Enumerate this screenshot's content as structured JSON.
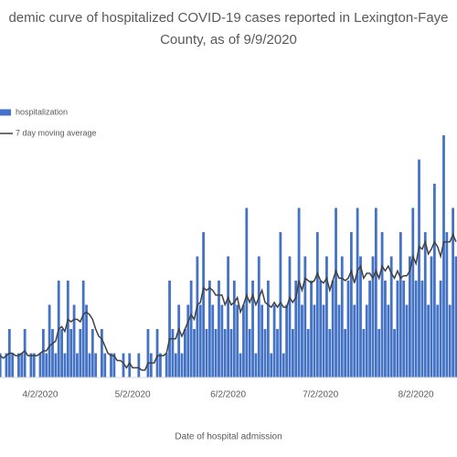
{
  "chart_data": {
    "type": "bar",
    "title": [
      "demic curve of hospitalized COVID-19 cases reported in Lexington-Faye",
      "County, as of 9/9/2020"
    ],
    "x_label": "Date of hospital admission",
    "categories": [
      null,
      null,
      null,
      null,
      null,
      null,
      null,
      null,
      null,
      null,
      null,
      null,
      null,
      "4/2/2020",
      null,
      null,
      null,
      null,
      null,
      null,
      null,
      null,
      null,
      null,
      null,
      null,
      null,
      null,
      null,
      null,
      null,
      null,
      null,
      null,
      null,
      null,
      null,
      null,
      null,
      null,
      null,
      null,
      null,
      "5/2/2020",
      null,
      null,
      null,
      null,
      null,
      null,
      null,
      null,
      null,
      null,
      null,
      null,
      null,
      null,
      null,
      null,
      null,
      null,
      null,
      null,
      null,
      null,
      null,
      null,
      null,
      null,
      null,
      null,
      null,
      null,
      "6/2/2020",
      null,
      null,
      null,
      null,
      null,
      null,
      null,
      null,
      null,
      null,
      null,
      null,
      null,
      null,
      null,
      null,
      null,
      null,
      null,
      null,
      null,
      null,
      null,
      null,
      null,
      null,
      null,
      null,
      null,
      "7/2/2020",
      null,
      null,
      null,
      null,
      null,
      null,
      null,
      null,
      null,
      null,
      null,
      null,
      null,
      null,
      null,
      null,
      null,
      null,
      null,
      null,
      null,
      null,
      null,
      null,
      null,
      null,
      null,
      null,
      null,
      null,
      "8/2/2020",
      null,
      null,
      null,
      null,
      null,
      null,
      null,
      null,
      null,
      null,
      null,
      null,
      null
    ],
    "series": [
      {
        "name": "hospitalization",
        "type": "bar",
        "color": "#4472c4",
        "values": [
          1,
          0,
          1,
          2,
          1,
          0,
          1,
          1,
          2,
          0,
          1,
          1,
          0,
          1,
          2,
          1,
          3,
          2,
          1,
          4,
          2,
          1,
          4,
          2,
          3,
          1,
          2,
          4,
          3,
          1,
          2,
          1,
          0,
          2,
          1,
          0,
          1,
          1,
          0,
          0,
          1,
          0,
          1,
          0,
          0,
          1,
          0,
          0,
          2,
          1,
          0,
          2,
          1,
          0,
          1,
          4,
          2,
          1,
          3,
          1,
          2,
          3,
          4,
          2,
          5,
          3,
          6,
          2,
          4,
          3,
          2,
          4,
          3,
          2,
          5,
          2,
          4,
          3,
          1,
          3,
          7,
          2,
          4,
          1,
          5,
          3,
          2,
          4,
          1,
          3,
          2,
          6,
          1,
          3,
          5,
          2,
          4,
          7,
          3,
          5,
          2,
          4,
          3,
          6,
          4,
          3,
          5,
          2,
          4,
          7,
          3,
          5,
          2,
          4,
          6,
          3,
          7,
          5,
          2,
          3,
          4,
          5,
          7,
          2,
          6,
          4,
          3,
          5,
          2,
          4,
          6,
          4,
          3,
          5,
          7,
          4,
          9,
          4,
          6,
          3,
          5,
          8,
          3,
          4,
          10,
          6,
          3,
          7,
          5
        ]
      },
      {
        "name": "7 day moving average",
        "type": "line",
        "color": "#404040",
        "values": [
          0.9,
          0.8,
          0.9,
          1.0,
          1.0,
          0.9,
          0.9,
          1.0,
          1.1,
          0.9,
          0.9,
          0.9,
          0.9,
          1.0,
          1.1,
          1.1,
          1.3,
          1.4,
          1.5,
          2.0,
          2.1,
          1.9,
          2.4,
          2.3,
          2.4,
          2.4,
          2.3,
          2.6,
          2.7,
          2.6,
          2.4,
          2.0,
          1.7,
          1.6,
          1.3,
          1.0,
          0.9,
          0.9,
          0.7,
          0.7,
          0.6,
          0.4,
          0.6,
          0.4,
          0.4,
          0.4,
          0.3,
          0.3,
          0.6,
          0.6,
          0.6,
          0.9,
          0.9,
          0.9,
          1.0,
          1.6,
          1.6,
          1.6,
          2.0,
          1.7,
          2.0,
          2.3,
          2.6,
          2.4,
          3.0,
          3.1,
          3.7,
          3.6,
          3.7,
          3.6,
          3.4,
          3.4,
          3.4,
          3.0,
          3.3,
          3.0,
          3.1,
          3.3,
          2.7,
          3.0,
          3.4,
          3.1,
          3.4,
          3.0,
          3.3,
          3.6,
          3.1,
          3.0,
          2.9,
          3.1,
          2.9,
          3.1,
          2.9,
          2.9,
          3.3,
          3.1,
          3.3,
          4.0,
          3.6,
          4.1,
          4.0,
          3.9,
          4.0,
          4.3,
          4.0,
          3.9,
          4.1,
          3.6,
          4.0,
          4.4,
          4.1,
          4.1,
          4.0,
          4.1,
          4.4,
          3.9,
          4.4,
          4.6,
          4.1,
          4.3,
          4.3,
          4.1,
          4.4,
          4.1,
          4.6,
          4.4,
          4.6,
          4.3,
          4.1,
          4.4,
          4.1,
          4.2,
          4.2,
          4.4,
          5.0,
          4.7,
          5.4,
          5.3,
          5.6,
          5.1,
          5.3,
          5.6,
          5.4,
          5.0,
          5.6,
          5.6,
          5.6,
          5.9,
          5.6
        ]
      }
    ],
    "ylim": [
      0,
      10
    ],
    "grid": false,
    "legend": "left"
  }
}
